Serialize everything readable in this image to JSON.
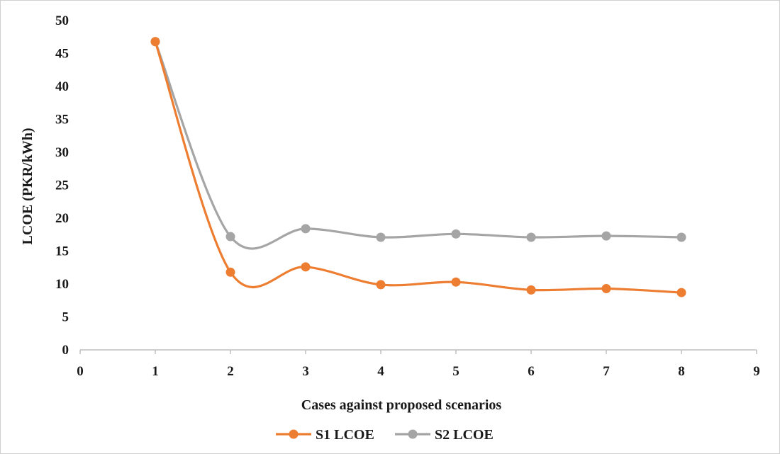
{
  "chart_data": {
    "type": "line",
    "title": "",
    "xlabel": "Cases against proposed scenarios",
    "ylabel": "LCOE (PKR/kWh)",
    "xlim": [
      0,
      9
    ],
    "ylim": [
      0,
      50
    ],
    "xticks": [
      0,
      1,
      2,
      3,
      4,
      5,
      6,
      7,
      8,
      9
    ],
    "yticks": [
      0,
      5,
      10,
      15,
      20,
      25,
      30,
      35,
      40,
      45,
      50
    ],
    "grid": false,
    "smooth": true,
    "legend_position": "bottom",
    "x": [
      1,
      2,
      3,
      4,
      5,
      6,
      7,
      8
    ],
    "series": [
      {
        "name": "S1 LCOE",
        "color": "#ed7d31",
        "values": [
          46.8,
          11.8,
          12.6,
          9.9,
          10.3,
          9.1,
          9.3,
          8.7
        ]
      },
      {
        "name": "S2 LCOE",
        "color": "#a5a5a5",
        "values": [
          46.8,
          17.2,
          18.4,
          17.1,
          17.6,
          17.1,
          17.3,
          17.1
        ]
      }
    ]
  }
}
